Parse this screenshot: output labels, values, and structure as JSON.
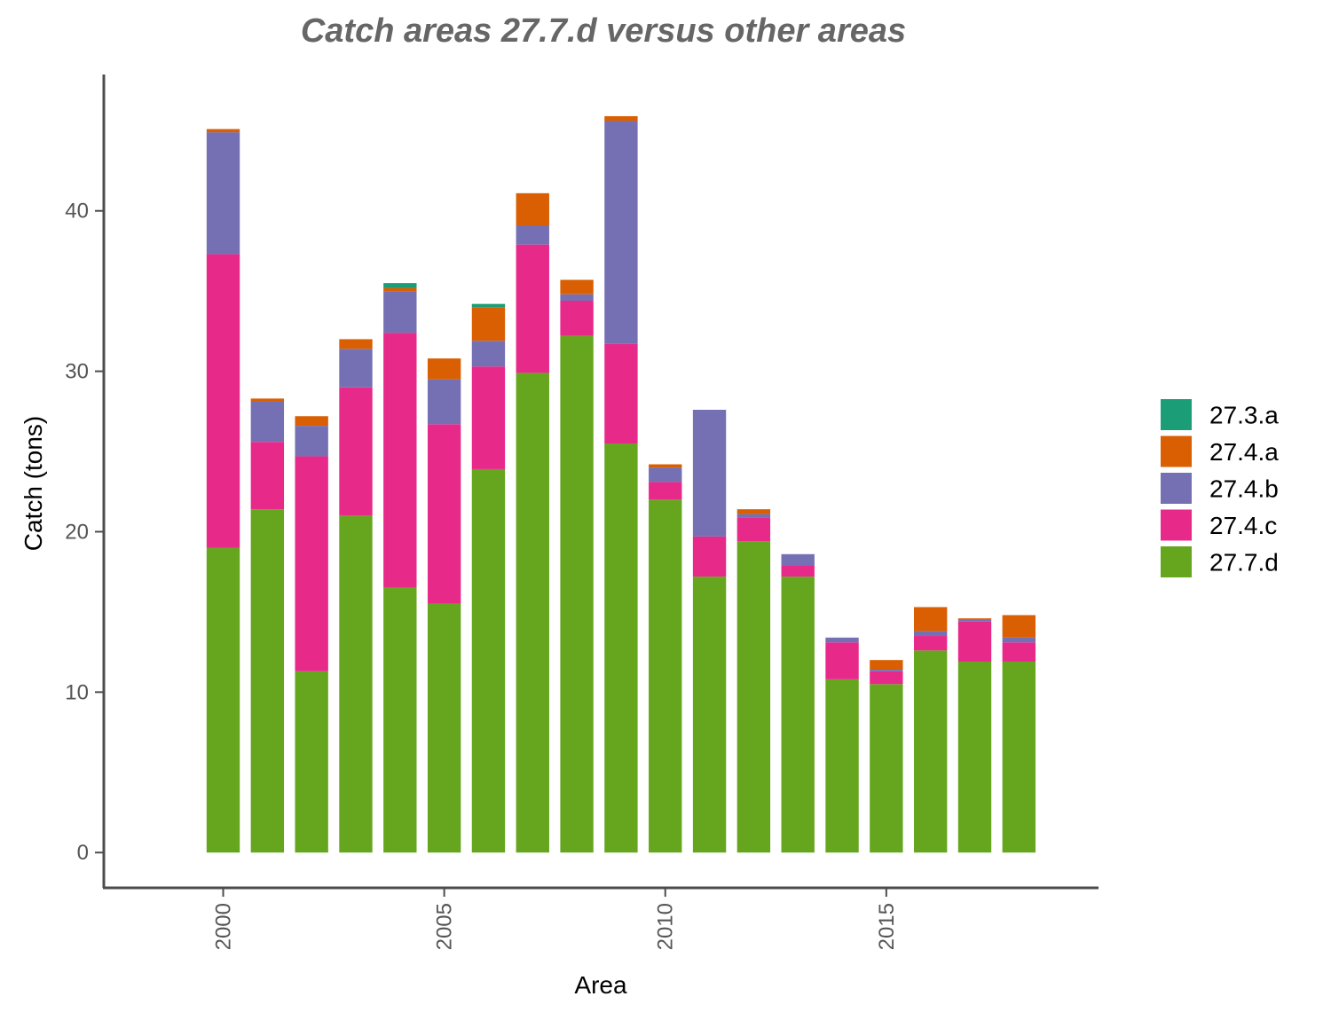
{
  "chart_data": {
    "type": "bar",
    "stacked": true,
    "title": "Catch areas 27.7.d versus other areas",
    "xlabel": "Area",
    "ylabel": "Catch (tons)",
    "x": [
      2000,
      2001,
      2002,
      2003,
      2004,
      2005,
      2006,
      2007,
      2008,
      2009,
      2010,
      2011,
      2012,
      2013,
      2014,
      2015,
      2016,
      2017,
      2018
    ],
    "xticks": [
      "2000",
      "2005",
      "2010",
      "2015"
    ],
    "yticks": [
      "0",
      "10",
      "20",
      "30",
      "40"
    ],
    "ylim": [
      -2.2,
      48.5
    ],
    "xlim": [
      1997.3,
      2019.8
    ],
    "grid": false,
    "legend_position": "right",
    "series": [
      {
        "name": "27.7.d",
        "color": "#66A61E",
        "values": [
          19.0,
          21.4,
          11.3,
          21.0,
          16.5,
          15.5,
          23.9,
          29.9,
          32.2,
          25.5,
          22.0,
          17.2,
          19.4,
          17.2,
          10.8,
          10.5,
          12.6,
          11.9,
          11.9
        ]
      },
      {
        "name": "27.4.c",
        "color": "#E7298A",
        "values": [
          18.3,
          4.2,
          13.4,
          8.0,
          15.9,
          11.2,
          6.4,
          8.0,
          2.2,
          6.2,
          1.1,
          2.5,
          1.5,
          0.7,
          2.3,
          0.8,
          0.9,
          2.5,
          1.2
        ]
      },
      {
        "name": "27.4.b",
        "color": "#7570B3",
        "values": [
          7.6,
          2.5,
          1.9,
          2.4,
          2.6,
          2.8,
          1.6,
          1.2,
          0.4,
          13.9,
          0.9,
          7.9,
          0.2,
          0.7,
          0.3,
          0.1,
          0.3,
          0.1,
          0.3
        ]
      },
      {
        "name": "27.4.a",
        "color": "#D95F02",
        "values": [
          0.2,
          0.2,
          0.6,
          0.6,
          0.2,
          1.3,
          2.1,
          2.0,
          0.9,
          0.3,
          0.2,
          0.0,
          0.3,
          0.0,
          0.0,
          0.6,
          1.5,
          0.1,
          1.4
        ]
      },
      {
        "name": "27.3.a",
        "color": "#1B9E77",
        "values": [
          0,
          0,
          0,
          0,
          0.3,
          0,
          0.2,
          0,
          0,
          0,
          0,
          0,
          0,
          0,
          0,
          0,
          0,
          0,
          0
        ]
      }
    ],
    "legend_order": [
      "27.3.a",
      "27.4.a",
      "27.4.b",
      "27.4.c",
      "27.7.d"
    ]
  }
}
